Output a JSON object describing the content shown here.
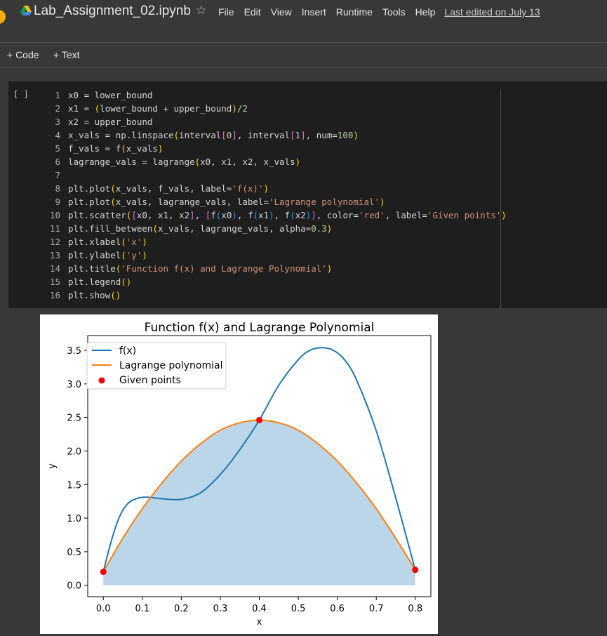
{
  "header": {
    "notebook_title": "Lab_Assignment_02.ipynb",
    "menu": [
      "File",
      "Edit",
      "View",
      "Insert",
      "Runtime",
      "Tools",
      "Help"
    ],
    "last_edited": "Last edited on July 13"
  },
  "toolbar": {
    "code_label": "+ Code",
    "text_label": "+ Text"
  },
  "cell": {
    "run_label": "[ ]",
    "lines": [
      {
        "n": "1",
        "code": "x0 = lower_bound"
      },
      {
        "n": "2",
        "code": "x1 = (lower_bound + upper_bound)/2"
      },
      {
        "n": "3",
        "code": "x2 = upper_bound"
      },
      {
        "n": "4",
        "code": "x_vals = np.linspace(interval[0], interval[1], num=100)"
      },
      {
        "n": "5",
        "code": "f_vals = f(x_vals)"
      },
      {
        "n": "6",
        "code": "lagrange_vals = lagrange(x0, x1, x2, x_vals)"
      },
      {
        "n": "7",
        "code": ""
      },
      {
        "n": "8",
        "code": "plt.plot(x_vals, f_vals, label='f(x)')"
      },
      {
        "n": "9",
        "code": "plt.plot(x_vals, lagrange_vals, label='Lagrange polynomial')"
      },
      {
        "n": "10",
        "code": "plt.scatter([x0, x1, x2], [f(x0), f(x1), f(x2)], color='red', label='Given points')"
      },
      {
        "n": "11",
        "code": "plt.fill_between(x_vals, lagrange_vals, alpha=0.3)"
      },
      {
        "n": "12",
        "code": "plt.xlabel('x')"
      },
      {
        "n": "13",
        "code": "plt.ylabel('y')"
      },
      {
        "n": "14",
        "code": "plt.title('Function f(x) and Lagrange Polynomial')"
      },
      {
        "n": "15",
        "code": "plt.legend()"
      },
      {
        "n": "16",
        "code": "plt.show()"
      }
    ]
  },
  "colors": {
    "f_line": "#1f77b4",
    "lagrange_line": "#ff7f0e",
    "fill": "#1f77b4",
    "points": "#ff0000",
    "string": "#ce9178",
    "number": "#b5cea8",
    "bracket1": "#ffd700",
    "bracket2": "#da70d6",
    "bracket3": "#179fff"
  },
  "chart_data": {
    "type": "line",
    "title": "Function f(x) and Lagrange Polynomial",
    "xlabel": "x",
    "ylabel": "y",
    "xlim": [
      -0.04,
      0.84
    ],
    "ylim": [
      -0.17,
      3.72
    ],
    "xticks": [
      "0.0",
      "0.1",
      "0.2",
      "0.3",
      "0.4",
      "0.5",
      "0.6",
      "0.7",
      "0.8"
    ],
    "yticks": [
      "0.0",
      "0.5",
      "1.0",
      "1.5",
      "2.0",
      "2.5",
      "3.0",
      "3.5"
    ],
    "legend_position": "upper-left",
    "grid": false,
    "series": [
      {
        "name": "f(x)",
        "type": "line",
        "x": [
          0.0,
          0.02,
          0.04,
          0.06,
          0.08,
          0.1,
          0.12,
          0.15,
          0.2,
          0.25,
          0.3,
          0.35,
          0.4,
          0.45,
          0.5,
          0.53,
          0.56,
          0.59,
          0.62,
          0.65,
          0.7,
          0.75,
          0.8
        ],
        "y": [
          0.2,
          0.65,
          1.0,
          1.2,
          1.28,
          1.31,
          1.31,
          1.29,
          1.28,
          1.38,
          1.65,
          2.02,
          2.46,
          2.98,
          3.36,
          3.5,
          3.54,
          3.5,
          3.35,
          3.05,
          2.3,
          1.3,
          0.23
        ]
      },
      {
        "name": "Lagrange polynomial",
        "type": "line",
        "x": [
          0.0,
          0.05,
          0.1,
          0.15,
          0.2,
          0.25,
          0.3,
          0.35,
          0.4,
          0.45,
          0.5,
          0.55,
          0.6,
          0.65,
          0.7,
          0.75,
          0.8
        ],
        "y": [
          0.2,
          0.7,
          1.14,
          1.52,
          1.85,
          2.11,
          2.31,
          2.42,
          2.46,
          2.42,
          2.31,
          2.11,
          1.85,
          1.52,
          1.14,
          0.7,
          0.23
        ]
      },
      {
        "name": "Given points",
        "type": "scatter",
        "x": [
          0.0,
          0.4,
          0.8
        ],
        "y": [
          0.2,
          2.46,
          0.23
        ]
      }
    ],
    "fill_between": {
      "series": "Lagrange polynomial",
      "alpha": 0.3
    }
  }
}
